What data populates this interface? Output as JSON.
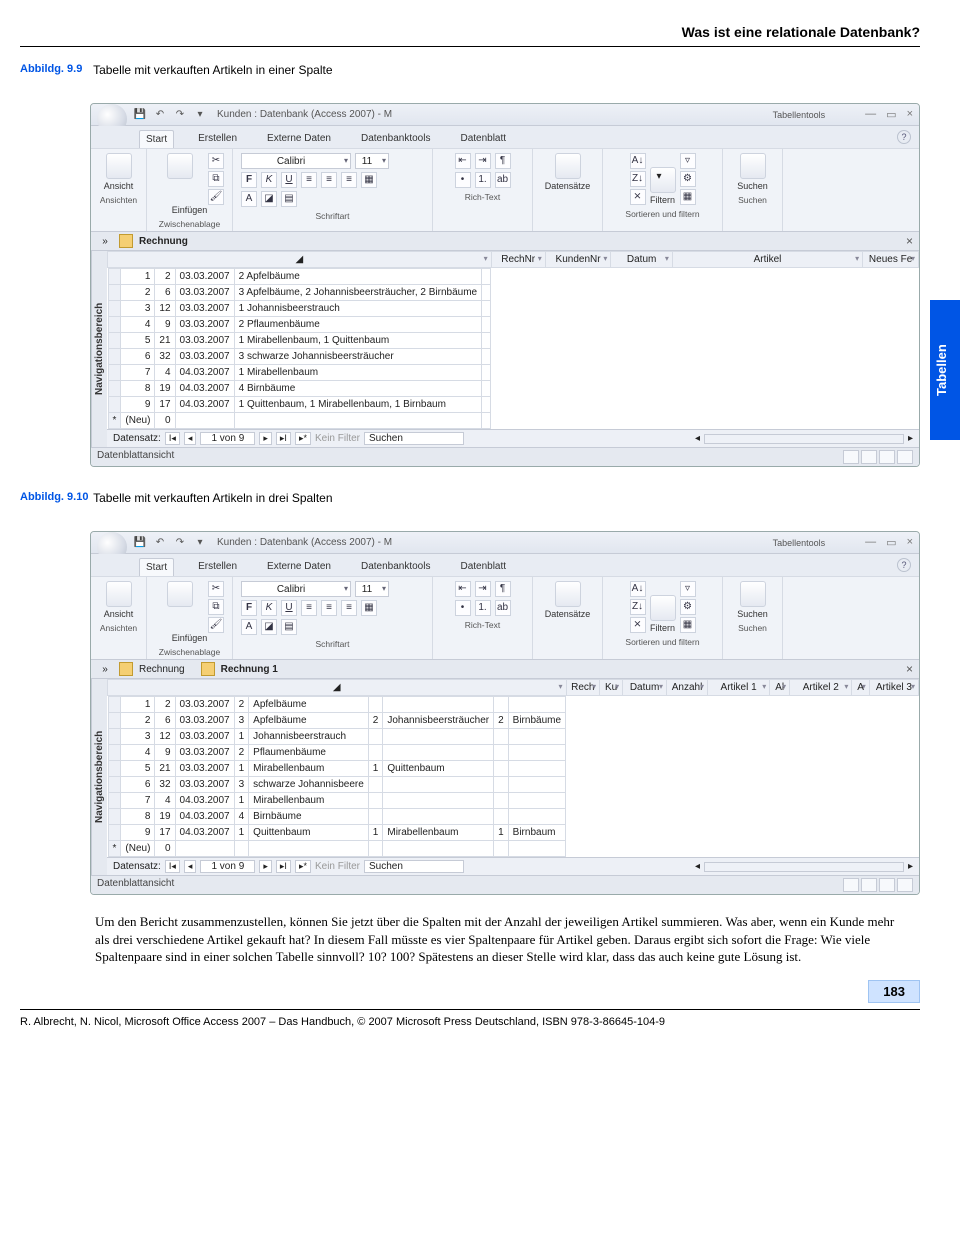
{
  "running_head": "Was ist eine relationale Datenbank?",
  "side_tab": "Tabellen",
  "fig1": {
    "label": "Abbildg. 9.9",
    "caption": "Tabelle mit verkauften Artikeln in einer Spalte"
  },
  "fig2": {
    "label": "Abbildg. 9.10",
    "caption": "Tabelle mit verkauften Artikeln in drei Spalten"
  },
  "win": {
    "title": "Kunden : Datenbank (Access 2007)  -  M",
    "tooltab": "Tabellentools",
    "tabs": [
      "Start",
      "Erstellen",
      "Externe Daten",
      "Datenbanktools",
      "Datenblatt"
    ],
    "groups": {
      "ansichten": "Ansichten",
      "ansicht": "Ansicht",
      "zwischenablage": "Zwischenablage",
      "einfugen": "Einfügen",
      "schriftart": "Schriftart",
      "richtext": "Rich-Text",
      "datensatze": "Datensätze",
      "sortfilter": "Sortieren und filtern",
      "filtern": "Filtern",
      "suchen": "Suchen"
    },
    "font_name": "Calibri",
    "font_size": "11",
    "bold": "F",
    "italic": "K",
    "underline": "U",
    "navpane": "Navigationsbereich",
    "recnav": {
      "label": "Datensatz:",
      "pos": "1 von 9",
      "nofilter": "Kein Filter",
      "search": "Suchen"
    },
    "status": "Datenblattansicht",
    "close": "×"
  },
  "tbl1": {
    "name": "Rechnung",
    "cols": [
      "RechNr",
      "KundenNr",
      "Datum",
      "Artikel",
      "Neues Fe"
    ],
    "rows": [
      [
        "1",
        "2",
        "03.03.2007",
        "2 Apfelbäume"
      ],
      [
        "2",
        "6",
        "03.03.2007",
        "3 Apfelbäume, 2 Johannisbeersträucher, 2 Birnbäume"
      ],
      [
        "3",
        "12",
        "03.03.2007",
        "1 Johannisbeerstrauch"
      ],
      [
        "4",
        "9",
        "03.03.2007",
        "2 Pflaumenbäume"
      ],
      [
        "5",
        "21",
        "03.03.2007",
        "1 Mirabellenbaum, 1 Quittenbaum"
      ],
      [
        "6",
        "32",
        "03.03.2007",
        "3 schwarze Johannisbeersträucher"
      ],
      [
        "7",
        "4",
        "04.03.2007",
        "1 Mirabellenbaum"
      ],
      [
        "8",
        "19",
        "04.03.2007",
        "4 Birnbäume"
      ],
      [
        "9",
        "17",
        "04.03.2007",
        "1 Quittenbaum, 1 Mirabellenbaum, 1 Birnbaum"
      ]
    ],
    "new": "(Neu)",
    "newval": "0"
  },
  "tbl2": {
    "name_a": "Rechnung",
    "name_b": "Rechnung 1",
    "cols": [
      "Rech",
      "Ku",
      "Datum",
      "Anzahl",
      "Artikel 1",
      "Al",
      "Artikel 2",
      "A",
      "Artikel 3"
    ],
    "rows": [
      [
        "1",
        "2",
        "03.03.2007",
        "2",
        "Apfelbäume",
        "",
        "",
        "",
        ""
      ],
      [
        "2",
        "6",
        "03.03.2007",
        "3",
        "Apfelbäume",
        "2",
        "Johannisbeersträucher",
        "2",
        "Birnbäume"
      ],
      [
        "3",
        "12",
        "03.03.2007",
        "1",
        "Johannisbeerstrauch",
        "",
        "",
        "",
        ""
      ],
      [
        "4",
        "9",
        "03.03.2007",
        "2",
        "Pflaumenbäume",
        "",
        "",
        "",
        ""
      ],
      [
        "5",
        "21",
        "03.03.2007",
        "1",
        "Mirabellenbaum",
        "1",
        "Quittenbaum",
        "",
        ""
      ],
      [
        "6",
        "32",
        "03.03.2007",
        "3",
        "schwarze Johannisbeere",
        "",
        "",
        "",
        ""
      ],
      [
        "7",
        "4",
        "04.03.2007",
        "1",
        "Mirabellenbaum",
        "",
        "",
        "",
        ""
      ],
      [
        "8",
        "19",
        "04.03.2007",
        "4",
        "Birnbäume",
        "",
        "",
        "",
        ""
      ],
      [
        "9",
        "17",
        "04.03.2007",
        "1",
        "Quittenbaum",
        "1",
        "Mirabellenbaum",
        "1",
        "Birnbaum"
      ]
    ],
    "new": "(Neu)",
    "newval": "0"
  },
  "body_text": "Um den Bericht zusammenzustellen, können Sie jetzt über die Spalten mit der Anzahl der jeweiligen Artikel summieren. Was aber, wenn ein Kunde mehr als drei verschiedene Artikel gekauft hat? In diesem Fall müsste es vier Spaltenpaare für Artikel geben. Daraus ergibt sich sofort die Frage: Wie viele Spaltenpaare sind in einer solchen Tabelle sinnvoll? 10? 100? Spätestens an dieser Stelle wird klar, dass das auch keine gute Lösung ist.",
  "pagenum": "183",
  "footer": "R. Albrecht, N. Nicol, Microsoft Office Access 2007 – Das Handbuch, © 2007 Microsoft Press Deutschland, ISBN 978-3-86645-104-9"
}
